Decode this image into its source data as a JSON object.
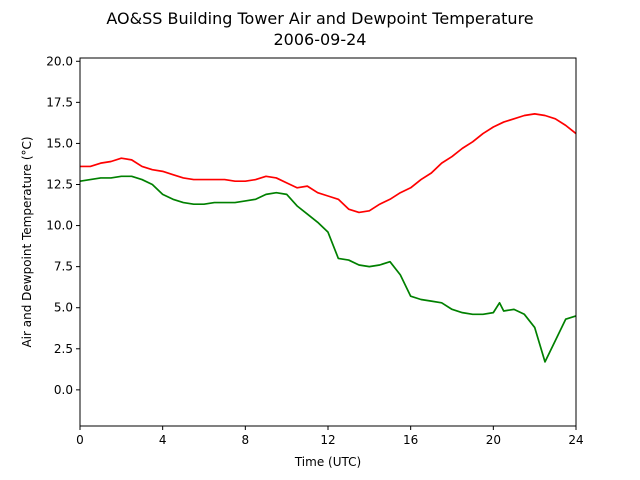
{
  "chart_data": {
    "type": "line",
    "title": "AO&SS Building Tower Air and Dewpoint Temperature",
    "subtitle": "2006-09-24",
    "xlabel": "Time (UTC)",
    "ylabel": "Air and Dewpoint Temperature (°C)",
    "xlim": [
      0,
      24
    ],
    "ylim": [
      -2.2,
      20.2
    ],
    "xticks": [
      0,
      4,
      8,
      12,
      16,
      20,
      24
    ],
    "xtick_labels": [
      "0",
      "4",
      "8",
      "12",
      "16",
      "20",
      "24"
    ],
    "yticks": [
      0,
      2.5,
      5,
      7.5,
      10,
      12.5,
      15,
      17.5,
      20
    ],
    "ytick_labels": [
      "0.0",
      "2.5",
      "5.0",
      "7.5",
      "10.0",
      "12.5",
      "15.0",
      "17.5",
      "20.0"
    ],
    "grid": false,
    "series": [
      {
        "color": "#ff0000",
        "x": [
          0,
          0.5,
          1,
          1.5,
          2,
          2.5,
          3,
          3.5,
          4,
          4.5,
          5,
          5.5,
          6,
          6.5,
          7,
          7.5,
          8,
          8.5,
          9,
          9.5,
          10,
          10.5,
          11,
          11.5,
          12,
          12.5,
          13,
          13.5,
          14,
          14.5,
          15,
          15.5,
          16,
          16.5,
          17,
          17.5,
          18,
          18.5,
          19,
          19.5,
          20,
          20.5,
          21,
          21.5,
          22,
          22.5,
          23,
          23.5,
          24
        ],
        "y": [
          13.6,
          13.6,
          13.8,
          13.9,
          14.1,
          14.0,
          13.6,
          13.4,
          13.3,
          13.1,
          12.9,
          12.8,
          12.8,
          12.8,
          12.8,
          12.7,
          12.7,
          12.8,
          13.0,
          12.9,
          12.6,
          12.3,
          12.4,
          12.0,
          11.8,
          11.6,
          11.0,
          10.8,
          10.9,
          11.3,
          11.6,
          12.0,
          12.3,
          12.8,
          13.2,
          13.8,
          14.2,
          14.7,
          15.1,
          15.6,
          16.0,
          16.3,
          16.5,
          16.7,
          16.8,
          16.7,
          16.5,
          16.1,
          15.6
        ]
      },
      {
        "color": "#008000",
        "x": [
          0,
          0.5,
          1,
          1.5,
          2,
          2.5,
          3,
          3.5,
          4,
          4.5,
          5,
          5.5,
          6,
          6.5,
          7,
          7.5,
          8,
          8.5,
          9,
          9.5,
          10,
          10.5,
          11,
          11.5,
          12,
          12.5,
          13,
          13.5,
          14,
          14.5,
          15,
          15.5,
          16,
          16.5,
          17,
          17.5,
          18,
          18.5,
          19,
          19.5,
          20,
          20.3,
          20.5,
          21,
          21.5,
          22,
          22.5,
          23,
          23.5,
          24
        ],
        "y": [
          12.7,
          12.8,
          12.9,
          12.9,
          13.0,
          13.0,
          12.8,
          12.5,
          11.9,
          11.6,
          11.4,
          11.3,
          11.3,
          11.4,
          11.4,
          11.4,
          11.5,
          11.6,
          11.9,
          12.0,
          11.9,
          11.2,
          10.7,
          10.2,
          9.6,
          8.0,
          7.9,
          7.6,
          7.5,
          7.6,
          7.8,
          7.0,
          5.7,
          5.5,
          5.4,
          5.3,
          4.9,
          4.7,
          4.6,
          4.6,
          4.7,
          5.3,
          4.8,
          4.9,
          4.6,
          3.8,
          1.7,
          3.0,
          4.3,
          4.5
        ]
      }
    ]
  }
}
